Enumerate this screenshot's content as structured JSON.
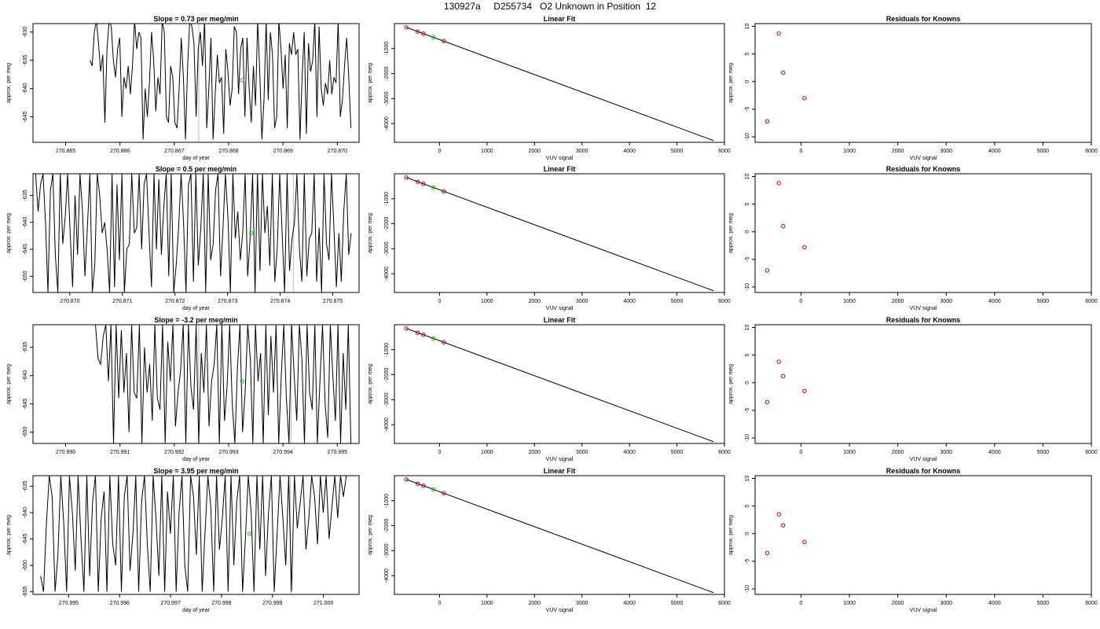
{
  "title": "130927a     D255734   O2 Unknown in Position  12",
  "colors": {
    "line": "#000000",
    "known": "#cc0000",
    "unknown": "#00cc00",
    "ref": "#bbbbbb"
  },
  "chart_data": [
    {
      "id": "ts1",
      "type": "line",
      "title": "Slope =  0.73  per meg/min",
      "xlabel": "day of year",
      "ylabel": "approx. per meg",
      "xlim": [
        270.8644,
        270.8704
      ],
      "ylim": [
        -649.5,
        -628.5
      ],
      "xticks": [
        "270.865",
        "270.866",
        "270.867",
        "270.868",
        "270.869",
        "270.870"
      ],
      "yticks": [
        "-645",
        "-640",
        "-635",
        "-630"
      ],
      "ref_lines_x": [
        270.86745
      ],
      "series": [
        {
          "x_start": 270.86545,
          "x_end": 270.87025,
          "y": [
            -635,
            -636,
            -630,
            -628,
            -632,
            -637,
            -634,
            -646,
            -633,
            -628,
            -629,
            -635,
            -638,
            -633,
            -631,
            -645,
            -638,
            -640,
            -636,
            -641,
            -636,
            -628,
            -633,
            -630,
            -631,
            -649,
            -640,
            -645,
            -639,
            -630,
            -635,
            -644,
            -638,
            -641,
            -628,
            -630,
            -645,
            -646,
            -636,
            -638,
            -646,
            -647,
            -640,
            -631,
            -638,
            -649,
            -636,
            -628,
            -629,
            -632,
            -645,
            -633,
            -630,
            -636,
            -628,
            -647,
            -640,
            -631,
            -649,
            -641,
            -634,
            -639,
            -638,
            -648,
            -633,
            -637,
            -643,
            -640,
            -629,
            -630,
            -641,
            -633,
            -631,
            -645,
            -631,
            -640,
            -646,
            -636,
            -643,
            -628,
            -637,
            -649,
            -642,
            -628,
            -642,
            -630,
            -634,
            -647,
            -645,
            -628,
            -633,
            -640,
            -634,
            -647,
            -632,
            -634,
            -630,
            -634,
            -633,
            -649,
            -638,
            -630,
            -648,
            -632,
            -637,
            -635,
            -628,
            -645,
            -629,
            -640,
            -643,
            -639,
            -641,
            -635,
            -641,
            -638,
            -639,
            -628,
            -645,
            -642,
            -636,
            -631,
            -638,
            -647
          ]
        }
      ],
      "points": [
        {
          "x": 270.86825,
          "y": -638.5,
          "kind": "unknown"
        }
      ]
    },
    {
      "id": "fit1",
      "type": "line",
      "title": "Linear Fit",
      "xlabel": "VUV signal",
      "ylabel": "approx. per meg",
      "xlim": [
        -950,
        6000
      ],
      "ylim": [
        -4750,
        0
      ],
      "xticks": [
        "0",
        "1000",
        "2000",
        "3000",
        "4000",
        "5000",
        "6000"
      ],
      "yticks": [
        "-4000",
        "-3000",
        "-2000",
        "-1000"
      ],
      "line": [
        [
          -700,
          -150
        ],
        [
          5770,
          -4680
        ]
      ],
      "points": [
        {
          "x": -700,
          "y": -150,
          "kind": "known"
        },
        {
          "x": -460,
          "y": -320,
          "kind": "known"
        },
        {
          "x": -340,
          "y": -400,
          "kind": "known"
        },
        {
          "x": -130,
          "y": -550,
          "kind": "unknown"
        },
        {
          "x": 90,
          "y": -700,
          "kind": "known"
        }
      ]
    },
    {
      "id": "res1",
      "type": "scatter",
      "title": "Residuals for Knowns",
      "xlabel": "VUV signal",
      "ylabel": "approx. per meg",
      "xlim": [
        -950,
        6000
      ],
      "ylim": [
        -11,
        10.5
      ],
      "xticks": [
        "0",
        "1000",
        "2000",
        "3000",
        "4000",
        "5000",
        "6000"
      ],
      "yticks": [
        "-10",
        "-5",
        "0",
        "5",
        "10"
      ],
      "points": [
        {
          "x": -700,
          "y": -7.2,
          "kind": "known"
        },
        {
          "x": -460,
          "y": 8.7,
          "kind": "known"
        },
        {
          "x": -370,
          "y": 1.6,
          "kind": "known"
        },
        {
          "x": 70,
          "y": -3.0,
          "kind": "known"
        }
      ]
    },
    {
      "id": "ts2",
      "type": "line",
      "title": "Slope =  0.5  per meg/min",
      "xlabel": "day of year",
      "ylabel": "approx. per meg",
      "xlim": [
        270.8693,
        270.8755
      ],
      "ylim": [
        -653,
        -631
      ],
      "xticks": [
        "270.870",
        "270.871",
        "270.872",
        "270.873",
        "270.874",
        "270.875"
      ],
      "yticks": [
        "-650",
        "-645",
        "-640",
        "-635"
      ],
      "ref_lines_x": [
        270.87425
      ],
      "series": [
        {
          "x_start": 270.86935,
          "x_end": 270.87535,
          "y": [
            -631,
            -638,
            -633,
            -631,
            -640,
            -653,
            -634,
            -631,
            -646,
            -653,
            -631,
            -644,
            -639,
            -631,
            -642,
            -652,
            -635,
            -646,
            -631,
            -638,
            -650,
            -641,
            -631,
            -653,
            -648,
            -631,
            -635,
            -642,
            -640,
            -645,
            -653,
            -631,
            -652,
            -633,
            -647,
            -631,
            -653,
            -645,
            -644,
            -631,
            -642,
            -641,
            -631,
            -645,
            -633,
            -631,
            -642,
            -652,
            -631,
            -645,
            -632,
            -646,
            -637,
            -631,
            -650,
            -631,
            -653,
            -648,
            -641,
            -631,
            -640,
            -653,
            -633,
            -631,
            -651,
            -631,
            -648,
            -641,
            -631,
            -653,
            -631,
            -647,
            -644,
            -634,
            -631,
            -650,
            -641,
            -631,
            -639,
            -653,
            -631,
            -643,
            -638,
            -647,
            -642,
            -631,
            -650,
            -643,
            -631,
            -653,
            -631,
            -649,
            -631,
            -642,
            -637,
            -648,
            -631,
            -651,
            -645,
            -631,
            -642,
            -653,
            -631,
            -649,
            -643,
            -640,
            -631,
            -645,
            -651,
            -631,
            -650,
            -643,
            -642,
            -631,
            -651,
            -641,
            -653,
            -631,
            -644,
            -647,
            -631,
            -641,
            -652,
            -642,
            -651,
            -638,
            -631,
            -646,
            -642
          ]
        }
      ],
      "points": [
        {
          "x": 270.87345,
          "y": -642,
          "kind": "unknown"
        }
      ]
    },
    {
      "id": "fit2",
      "type": "line",
      "title": "Linear Fit",
      "xlabel": "VUV signal",
      "ylabel": "approx. per meg",
      "xlim": [
        -950,
        6000
      ],
      "ylim": [
        -4750,
        0
      ],
      "xticks": [
        "0",
        "1000",
        "2000",
        "3000",
        "4000",
        "5000",
        "6000"
      ],
      "yticks": [
        "-4000",
        "-3000",
        "-2000",
        "-1000"
      ],
      "line": [
        [
          -700,
          -150
        ],
        [
          5770,
          -4680
        ]
      ],
      "points": [
        {
          "x": -700,
          "y": -150,
          "kind": "known"
        },
        {
          "x": -460,
          "y": -320,
          "kind": "known"
        },
        {
          "x": -340,
          "y": -400,
          "kind": "known"
        },
        {
          "x": -130,
          "y": -550,
          "kind": "unknown"
        },
        {
          "x": 90,
          "y": -700,
          "kind": "known"
        }
      ]
    },
    {
      "id": "res2",
      "type": "scatter",
      "title": "Residuals for Knowns",
      "xlabel": "VUV signal",
      "ylabel": "approx. per meg",
      "xlim": [
        -950,
        6000
      ],
      "ylim": [
        -11,
        10.5
      ],
      "xticks": [
        "0",
        "1000",
        "2000",
        "3000",
        "4000",
        "5000",
        "6000"
      ],
      "yticks": [
        "-10",
        "-5",
        "0",
        "5",
        "10"
      ],
      "points": [
        {
          "x": -700,
          "y": -7.0,
          "kind": "known"
        },
        {
          "x": -460,
          "y": 8.8,
          "kind": "known"
        },
        {
          "x": -370,
          "y": 1.0,
          "kind": "known"
        },
        {
          "x": 70,
          "y": -2.8,
          "kind": "known"
        }
      ]
    },
    {
      "id": "ts3",
      "type": "line",
      "title": "Slope =  -3.2  per meg/min",
      "xlabel": "day of year",
      "ylabel": "approx. per meg",
      "xlim": [
        270.9894,
        270.9954
      ],
      "ylim": [
        -652,
        -631
      ],
      "xticks": [
        "270.990",
        "270.991",
        "270.992",
        "270.993",
        "270.994",
        "270.995"
      ],
      "yticks": [
        "-650",
        "-645",
        "-640",
        "-635"
      ],
      "ref_lines_x": [
        270.99245,
        270.99415
      ],
      "series": [
        {
          "x_start": 270.99055,
          "x_end": 270.99525,
          "y": [
            -631,
            -637,
            -638,
            -633,
            -631,
            -641,
            -631,
            -652,
            -631,
            -644,
            -632,
            -643,
            -636,
            -650,
            -631,
            -643,
            -644,
            -631,
            -652,
            -635,
            -643,
            -638,
            -648,
            -631,
            -644,
            -646,
            -631,
            -652,
            -634,
            -641,
            -631,
            -649,
            -643,
            -639,
            -631,
            -652,
            -631,
            -642,
            -646,
            -631,
            -652,
            -636,
            -643,
            -631,
            -649,
            -641,
            -638,
            -631,
            -652,
            -631,
            -648,
            -642,
            -631,
            -645,
            -652,
            -639,
            -631,
            -650,
            -643,
            -631,
            -637,
            -652,
            -631,
            -641,
            -636,
            -652,
            -631,
            -647,
            -633,
            -643,
            -631,
            -652,
            -640,
            -631,
            -644,
            -652,
            -631,
            -640,
            -648,
            -631,
            -637,
            -652,
            -631,
            -643,
            -646,
            -631,
            -652,
            -641,
            -631,
            -645,
            -651,
            -631,
            -640,
            -648,
            -631,
            -652,
            -636,
            -646,
            -631,
            -652
          ]
        }
      ],
      "points": [
        {
          "x": 270.99325,
          "y": -641,
          "kind": "unknown"
        }
      ]
    },
    {
      "id": "fit3",
      "type": "line",
      "title": "Linear Fit",
      "xlabel": "VUV signal",
      "ylabel": "approx. per meg",
      "xlim": [
        -950,
        6000
      ],
      "ylim": [
        -4750,
        0
      ],
      "xticks": [
        "0",
        "1000",
        "2000",
        "3000",
        "4000",
        "5000",
        "6000"
      ],
      "yticks": [
        "-4000",
        "-3000",
        "-2000",
        "-1000"
      ],
      "line": [
        [
          -700,
          -150
        ],
        [
          5770,
          -4680
        ]
      ],
      "points": [
        {
          "x": -700,
          "y": -150,
          "kind": "known"
        },
        {
          "x": -460,
          "y": -320,
          "kind": "known"
        },
        {
          "x": -340,
          "y": -400,
          "kind": "known"
        },
        {
          "x": -130,
          "y": -550,
          "kind": "unknown"
        },
        {
          "x": 90,
          "y": -700,
          "kind": "known"
        }
      ]
    },
    {
      "id": "res3",
      "type": "scatter",
      "title": "Residuals for Knowns",
      "xlabel": "VUV signal",
      "ylabel": "approx. per meg",
      "xlim": [
        -950,
        6000
      ],
      "ylim": [
        -11,
        10.5
      ],
      "xticks": [
        "0",
        "1000",
        "2000",
        "3000",
        "4000",
        "5000",
        "6000"
      ],
      "yticks": [
        "-10",
        "-5",
        "0",
        "5",
        "10"
      ],
      "points": [
        {
          "x": -700,
          "y": -3.5,
          "kind": "known"
        },
        {
          "x": -460,
          "y": 3.8,
          "kind": "known"
        },
        {
          "x": -370,
          "y": 1.2,
          "kind": "known"
        },
        {
          "x": 70,
          "y": -1.5,
          "kind": "known"
        }
      ]
    },
    {
      "id": "ts4",
      "type": "line",
      "title": "Slope =  3.95  per meg/min",
      "xlabel": "day of year",
      "ylabel": "approx. per meg",
      "xlim": [
        270.9943,
        271.0007
      ],
      "ylim": [
        -655.5,
        -633
      ],
      "xticks": [
        "270.995",
        "270.996",
        "270.997",
        "270.998",
        "270.999",
        "271.000"
      ],
      "yticks": [
        "-655",
        "-650",
        "-645",
        "-640",
        "-635"
      ],
      "ref_lines_x": [
        270.99935
      ],
      "series": [
        {
          "x_start": 270.99445,
          "x_end": 271.00045,
          "y": [
            -652,
            -655,
            -642,
            -633,
            -637,
            -655,
            -648,
            -633,
            -642,
            -655,
            -633,
            -640,
            -651,
            -633,
            -645,
            -655,
            -633,
            -652,
            -638,
            -633,
            -655,
            -641,
            -636,
            -655,
            -633,
            -646,
            -650,
            -633,
            -655,
            -637,
            -633,
            -651,
            -644,
            -633,
            -655,
            -638,
            -633,
            -646,
            -655,
            -633,
            -641,
            -652,
            -633,
            -655,
            -636,
            -644,
            -633,
            -655,
            -640,
            -633,
            -650,
            -655,
            -633,
            -637,
            -648,
            -633,
            -655,
            -644,
            -633,
            -639,
            -655,
            -633,
            -647,
            -641,
            -633,
            -655,
            -633,
            -650,
            -638,
            -633,
            -655,
            -645,
            -633,
            -640,
            -655,
            -633,
            -647,
            -633,
            -652,
            -640,
            -633,
            -655,
            -644,
            -633,
            -641,
            -650,
            -633,
            -655,
            -633,
            -643,
            -638,
            -633,
            -647,
            -641,
            -633,
            -637,
            -646,
            -633,
            -640,
            -633,
            -645,
            -639,
            -633,
            -641,
            -633,
            -637,
            -633
          ]
        }
      ],
      "points": [
        {
          "x": 270.99855,
          "y": -644,
          "kind": "unknown"
        }
      ]
    },
    {
      "id": "fit4",
      "type": "line",
      "title": "Linear Fit",
      "xlabel": "VUV signal",
      "ylabel": "approx. per meg",
      "xlim": [
        -950,
        6000
      ],
      "ylim": [
        -4750,
        0
      ],
      "xticks": [
        "0",
        "1000",
        "2000",
        "3000",
        "4000",
        "5000",
        "6000"
      ],
      "yticks": [
        "-4000",
        "-3000",
        "-2000",
        "-1000"
      ],
      "line": [
        [
          -700,
          -150
        ],
        [
          5770,
          -4680
        ]
      ],
      "points": [
        {
          "x": -700,
          "y": -150,
          "kind": "known"
        },
        {
          "x": -460,
          "y": -320,
          "kind": "known"
        },
        {
          "x": -340,
          "y": -400,
          "kind": "known"
        },
        {
          "x": -130,
          "y": -550,
          "kind": "unknown"
        },
        {
          "x": 90,
          "y": -700,
          "kind": "known"
        }
      ]
    },
    {
      "id": "res4",
      "type": "scatter",
      "title": "Residuals for Knowns",
      "xlabel": "VUV signal",
      "ylabel": "approx. per meg",
      "xlim": [
        -950,
        6000
      ],
      "ylim": [
        -11,
        10.5
      ],
      "xticks": [
        "0",
        "1000",
        "2000",
        "3000",
        "4000",
        "5000",
        "6000"
      ],
      "yticks": [
        "-10",
        "-5",
        "0",
        "5",
        "10"
      ],
      "points": [
        {
          "x": -700,
          "y": -3.5,
          "kind": "known"
        },
        {
          "x": -460,
          "y": 3.5,
          "kind": "known"
        },
        {
          "x": -370,
          "y": 1.5,
          "kind": "known"
        },
        {
          "x": 70,
          "y": -1.5,
          "kind": "known"
        }
      ]
    }
  ]
}
